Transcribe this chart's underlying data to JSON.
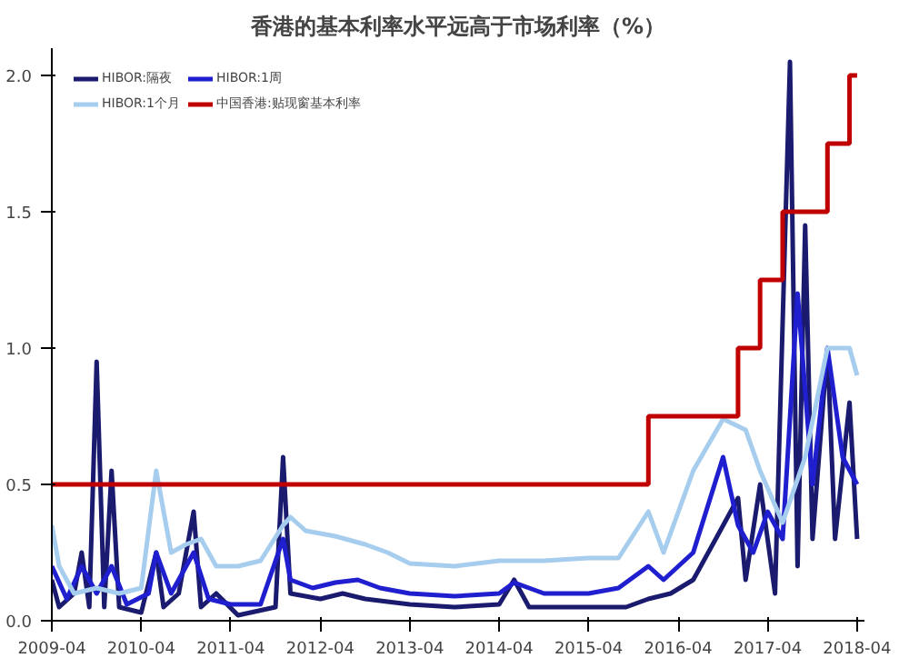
{
  "chart_data": {
    "type": "line",
    "title": "香港的基本利率水平远高于市场利率（%）",
    "xlim": [
      "2009-04",
      "2018-05"
    ],
    "ylim": [
      0,
      2.1
    ],
    "xticks": [
      "2009-04",
      "2010-04",
      "2011-04",
      "2012-04",
      "2013-04",
      "2014-04",
      "2015-04",
      "2016-04",
      "2017-04",
      "2018-04"
    ],
    "yticks": [
      {
        "value": 0,
        "label": "0.0"
      },
      {
        "value": 0.5,
        "label": "0.5"
      },
      {
        "value": 1,
        "label": "1.0"
      },
      {
        "value": 1.5,
        "label": "1.5"
      },
      {
        "value": 2,
        "label": "2.0"
      }
    ],
    "grid": false,
    "legend": "top",
    "line_style": "solid",
    "marker": "none",
    "series": [
      {
        "name": "HIBOR:隔夜",
        "color": "#1a1a6e",
        "x": [
          "2009-04",
          "2009-05",
          "2009-07",
          "2009-08",
          "2009-09",
          "2009-10",
          "2009-11",
          "2009-12",
          "2010-01",
          "2010-04",
          "2010-06",
          "2010-07",
          "2010-09",
          "2010-11",
          "2010-12",
          "2011-02",
          "2011-05",
          "2011-10",
          "2011-11",
          "2011-12",
          "2012-04",
          "2012-07",
          "2012-10",
          "2013-04",
          "2013-10",
          "2014-04",
          "2014-06",
          "2014-08",
          "2015-04",
          "2015-09",
          "2015-12",
          "2016-03",
          "2016-06",
          "2016-09",
          "2016-12",
          "2017-01",
          "2017-03",
          "2017-05",
          "2017-07",
          "2017-08",
          "2017-09",
          "2017-10",
          "2017-12",
          "2018-01",
          "2018-03",
          "2018-04"
        ],
        "values": [
          0.15,
          0.05,
          0.1,
          0.25,
          0.05,
          0.95,
          0.05,
          0.55,
          0.05,
          0.03,
          0.25,
          0.05,
          0.1,
          0.4,
          0.05,
          0.1,
          0.02,
          0.05,
          0.6,
          0.1,
          0.08,
          0.1,
          0.08,
          0.06,
          0.05,
          0.06,
          0.15,
          0.05,
          0.05,
          0.05,
          0.08,
          0.1,
          0.15,
          0.3,
          0.45,
          0.15,
          0.5,
          0.1,
          2.05,
          0.2,
          1.45,
          0.3,
          1.0,
          0.3,
          0.8,
          0.3
        ]
      },
      {
        "name": "HIBOR:1周",
        "color": "#1f1fd0",
        "x": [
          "2009-04",
          "2009-06",
          "2009-08",
          "2009-10",
          "2009-12",
          "2010-02",
          "2010-05",
          "2010-06",
          "2010-08",
          "2010-11",
          "2011-01",
          "2011-04",
          "2011-08",
          "2011-11",
          "2011-12",
          "2012-03",
          "2012-06",
          "2012-09",
          "2012-12",
          "2013-04",
          "2013-10",
          "2014-04",
          "2014-06",
          "2014-10",
          "2015-04",
          "2015-08",
          "2015-12",
          "2016-02",
          "2016-06",
          "2016-10",
          "2016-12",
          "2017-02",
          "2017-04",
          "2017-06",
          "2017-08",
          "2017-10",
          "2017-12",
          "2018-02",
          "2018-04"
        ],
        "values": [
          0.2,
          0.08,
          0.2,
          0.1,
          0.2,
          0.06,
          0.1,
          0.25,
          0.1,
          0.25,
          0.08,
          0.06,
          0.06,
          0.3,
          0.15,
          0.12,
          0.14,
          0.15,
          0.12,
          0.1,
          0.09,
          0.1,
          0.14,
          0.1,
          0.1,
          0.12,
          0.2,
          0.15,
          0.25,
          0.6,
          0.35,
          0.25,
          0.4,
          0.3,
          1.2,
          0.5,
          1.0,
          0.6,
          0.5
        ]
      },
      {
        "name": "HIBOR:1个月",
        "color": "#a6cdee",
        "x": [
          "2009-04",
          "2009-05",
          "2009-07",
          "2009-10",
          "2010-01",
          "2010-04",
          "2010-06",
          "2010-08",
          "2010-10",
          "2010-12",
          "2011-02",
          "2011-05",
          "2011-08",
          "2011-11",
          "2011-12",
          "2012-02",
          "2012-06",
          "2012-10",
          "2013-01",
          "2013-04",
          "2013-10",
          "2014-04",
          "2014-10",
          "2015-04",
          "2015-08",
          "2015-12",
          "2016-02",
          "2016-06",
          "2016-10",
          "2017-01",
          "2017-03",
          "2017-06",
          "2017-09",
          "2017-12",
          "2018-03",
          "2018-04"
        ],
        "values": [
          0.35,
          0.2,
          0.1,
          0.12,
          0.1,
          0.12,
          0.55,
          0.25,
          0.28,
          0.3,
          0.2,
          0.2,
          0.22,
          0.35,
          0.38,
          0.33,
          0.31,
          0.28,
          0.25,
          0.21,
          0.2,
          0.22,
          0.22,
          0.23,
          0.23,
          0.4,
          0.25,
          0.55,
          0.74,
          0.7,
          0.55,
          0.36,
          0.6,
          1.0,
          1.0,
          0.9
        ]
      },
      {
        "name": "中国香港:贴现窗基本利率",
        "color": "#c00000",
        "type": "step",
        "x": [
          "2009-04",
          "2015-12",
          "2016-12",
          "2017-03",
          "2017-06",
          "2017-12",
          "2018-03",
          "2018-04"
        ],
        "values": [
          0.5,
          0.75,
          1.0,
          1.25,
          1.5,
          1.75,
          2.0,
          2.0
        ]
      }
    ]
  }
}
